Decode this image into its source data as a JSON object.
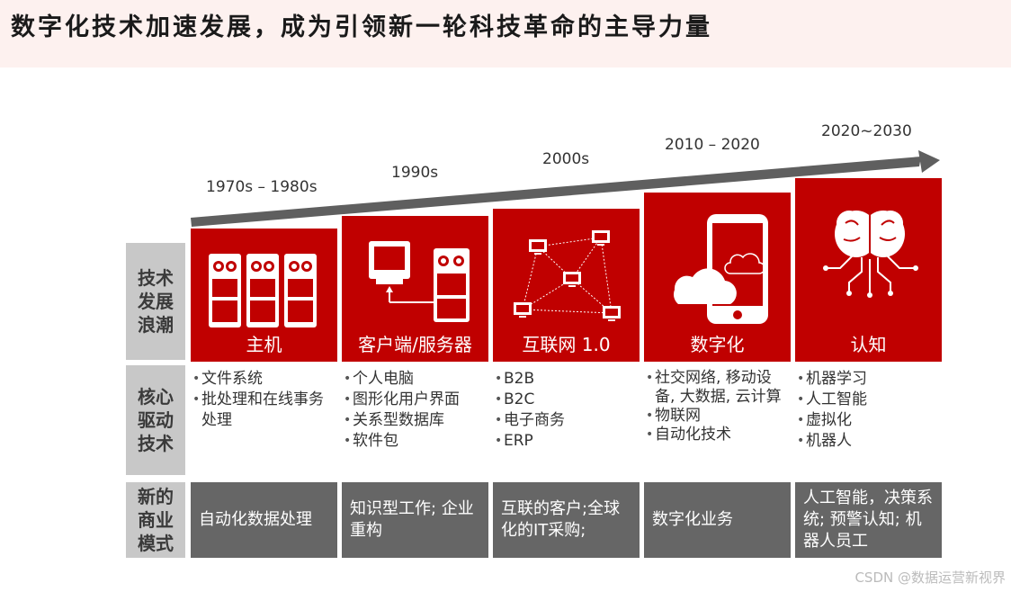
{
  "title": "数字化技术加速发展，成为引领新一轮科技革命的主导力量",
  "eras": [
    "1970s – 1980s",
    "1990s",
    "2000s",
    "2010 – 2020",
    "2020~2030"
  ],
  "row_labels": {
    "tech_wave": "技术发展浪潮",
    "core_driver": "核心驱动技术",
    "business_model": "新的商业模式"
  },
  "columns": [
    {
      "name": "主机",
      "icon": "mainframe-servers-icon",
      "drivers": [
        "文件系统",
        "批处理和在线事务处理"
      ],
      "model": "自动化数据处理"
    },
    {
      "name": "客户端/服务器",
      "icon": "client-server-icon",
      "drivers": [
        "个人电脑",
        "图形化用户界面",
        "关系型数据库",
        "软件包"
      ],
      "model": "知识型工作; 企业重构"
    },
    {
      "name": "互联网 1.0",
      "icon": "network-icon",
      "drivers": [
        "B2B",
        "B2C",
        "电子商务",
        "ERP"
      ],
      "model": "互联的客户;全球化的IT采购;"
    },
    {
      "name": "数字化",
      "icon": "mobile-cloud-icon",
      "drivers": [
        "社交网络, 移动设备, 大数据, 云计算",
        "物联网",
        "自动化技术"
      ],
      "model": "数字化业务"
    },
    {
      "name": "认知",
      "icon": "brain-circuit-icon",
      "drivers": [
        "机器学习",
        "人工智能",
        "虚拟化",
        "机器人"
      ],
      "model": "人工智能，决策系统; 预警认知; 机器人员工"
    }
  ],
  "colors": {
    "accent_red": "#c00000",
    "gray_label": "#c8c8c8",
    "gray_dark": "#666666",
    "arrow": "#5f5f5f"
  },
  "watermark": "CSDN @数据运营新视界"
}
